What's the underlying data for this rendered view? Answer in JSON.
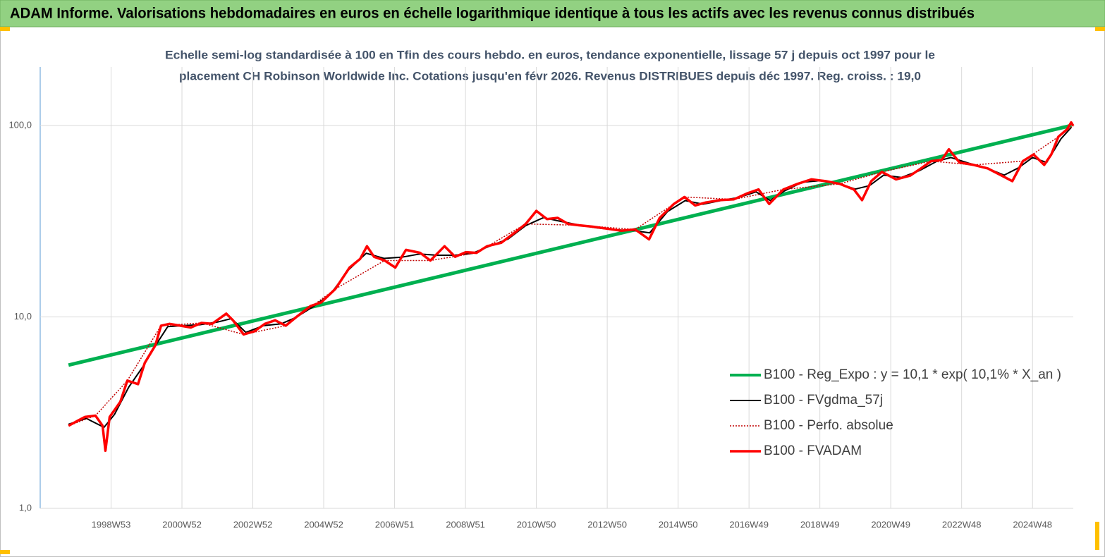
{
  "header": {
    "title": "ADAM Informe. Valorisations hebdomadaires en euros en échelle logarithmique identique à tous les actifs avec les revenus connus distribués"
  },
  "chart_data": {
    "type": "line",
    "subtitle": [
      "Echelle semi-log standardisée à 100 en Tfin des cours hebdo. en euros, tendance exponentielle, lissage 57 j depuis oct 1997 pour le",
      "placement CH Robinson Worldwide Inc. Cotations jusqu'en févr 2026. Revenus DISTRIBUES depuis déc 1997. Reg. croiss. : 19,0"
    ],
    "log_y": true,
    "grid": true,
    "legend_position": "right",
    "xlim": [
      1997,
      2026.15
    ],
    "ylim": [
      1,
      202
    ],
    "yticks": [
      {
        "value": 1,
        "label": "1,0"
      },
      {
        "value": 10,
        "label": "10,0"
      },
      {
        "value": 100,
        "label": "100,0"
      }
    ],
    "xticks": [
      {
        "value": 1999,
        "label": "1998W53"
      },
      {
        "value": 2001,
        "label": "2000W52"
      },
      {
        "value": 2003,
        "label": "2002W52"
      },
      {
        "value": 2005,
        "label": "2004W52"
      },
      {
        "value": 2007,
        "label": "2006W51"
      },
      {
        "value": 2009,
        "label": "2008W51"
      },
      {
        "value": 2011,
        "label": "2010W50"
      },
      {
        "value": 2013,
        "label": "2012W50"
      },
      {
        "value": 2015,
        "label": "2014W50"
      },
      {
        "value": 2017,
        "label": "2016W49"
      },
      {
        "value": 2019,
        "label": "2018W49"
      },
      {
        "value": 2021,
        "label": "2020W49"
      },
      {
        "value": 2023,
        "label": "2022W48"
      },
      {
        "value": 2025,
        "label": "2024W48"
      }
    ],
    "series": [
      {
        "name": "B100 - Reg_Expo : y = 10,1 * exp( 10,1% *  X_an )",
        "color": "#00b050",
        "width": 5,
        "dash": "none",
        "x": [
          1997.8,
          2026.1
        ],
        "values": [
          5.6,
          100
        ]
      },
      {
        "name": "B100 - FVgdma_57j",
        "color": "#000000",
        "width": 2,
        "dash": "none",
        "x": [
          1997.8,
          1998.3,
          1998.8,
          1999.1,
          1999.5,
          1999.9,
          2000.3,
          2000.6,
          2001.0,
          2001.5,
          2002.0,
          2002.4,
          2002.8,
          2003.3,
          2003.8,
          2004.2,
          2004.7,
          2005.2,
          2005.7,
          2006.2,
          2006.7,
          2007.2,
          2007.7,
          2008.2,
          2008.7,
          2009.2,
          2009.7,
          2010.2,
          2010.7,
          2011.2,
          2011.7,
          2012.2,
          2012.7,
          2013.2,
          2013.7,
          2014.2,
          2014.7,
          2015.2,
          2015.7,
          2016.2,
          2016.7,
          2017.2,
          2017.6,
          2018.0,
          2018.5,
          2019.0,
          2019.5,
          2020.0,
          2020.4,
          2020.8,
          2021.3,
          2021.8,
          2022.3,
          2022.7,
          2023.2,
          2023.7,
          2024.2,
          2024.6,
          2025.0,
          2025.4,
          2025.8,
          2026.1
        ],
        "values": [
          2.75,
          2.95,
          2.65,
          3.1,
          4.3,
          5.5,
          7.3,
          8.9,
          9.0,
          9.1,
          9.4,
          9.8,
          8.3,
          9.0,
          9.2,
          9.9,
          11.3,
          13.2,
          17.6,
          21.5,
          20.2,
          20.5,
          21.3,
          21.0,
          21.0,
          21.5,
          23.5,
          25.5,
          30.0,
          33.0,
          31.5,
          30.2,
          29.2,
          28.5,
          28.3,
          27.5,
          35.5,
          40.5,
          38.8,
          40.5,
          42.0,
          45.0,
          40.5,
          45.5,
          50.5,
          51.5,
          50.0,
          46.5,
          48.5,
          55.0,
          53.5,
          58.0,
          65.0,
          68.0,
          63.5,
          60.0,
          55.0,
          60.0,
          68.0,
          64.0,
          85.0,
          98.0
        ]
      },
      {
        "name": "B100 - Perfo. absolue",
        "color": "#c00000",
        "width": 1.5,
        "dash": "2 2",
        "x": [
          1997.8,
          1998.56,
          1999.46,
          2000.41,
          2001.55,
          2002.74,
          2003.93,
          2005.33,
          2006.72,
          2008.01,
          2009.31,
          2010.7,
          2012.2,
          2013.79,
          2015.18,
          2016.57,
          2017.97,
          2019.56,
          2020.75,
          2022.14,
          2023.34,
          2024.73,
          2025.73,
          2026.15
        ],
        "values": [
          2.7,
          3.05,
          4.65,
          9.0,
          9.3,
          8.1,
          9.0,
          14.0,
          19.7,
          19.7,
          21.6,
          30.6,
          30.1,
          28.6,
          42.3,
          41.1,
          46.3,
          49.5,
          57.2,
          65.1,
          62.2,
          65.1,
          87.3,
          99.5
        ]
      },
      {
        "name": "B100 - FVADAM",
        "color": "#ff0000",
        "width": 3.5,
        "dash": "none",
        "x": [
          1997.8,
          1998.06,
          1998.26,
          1998.56,
          1998.76,
          1998.84,
          1998.96,
          1999.26,
          1999.46,
          1999.76,
          1999.95,
          2000.25,
          2000.41,
          2000.65,
          2000.95,
          2001.25,
          2001.55,
          2001.85,
          2002.25,
          2002.44,
          2002.74,
          2003.04,
          2003.34,
          2003.63,
          2003.93,
          2004.23,
          2004.63,
          2004.93,
          2005.33,
          2005.73,
          2006.03,
          2006.22,
          2006.42,
          2006.72,
          2007.02,
          2007.32,
          2007.72,
          2008.01,
          2008.41,
          2008.71,
          2009.01,
          2009.31,
          2009.61,
          2010.01,
          2010.4,
          2010.7,
          2011.0,
          2011.3,
          2011.6,
          2011.9,
          2012.2,
          2012.59,
          2012.99,
          2013.39,
          2013.79,
          2014.18,
          2014.48,
          2014.88,
          2015.18,
          2015.48,
          2015.78,
          2016.17,
          2016.57,
          2016.97,
          2017.27,
          2017.57,
          2017.97,
          2018.37,
          2018.76,
          2019.16,
          2019.56,
          2019.96,
          2020.19,
          2020.45,
          2020.75,
          2021.15,
          2021.55,
          2021.85,
          2022.14,
          2022.44,
          2022.64,
          2022.94,
          2023.34,
          2023.74,
          2024.13,
          2024.43,
          2024.73,
          2025.03,
          2025.33,
          2025.53,
          2025.73,
          2025.97,
          2026.09,
          2026.15
        ],
        "values": [
          2.7,
          2.87,
          3.0,
          3.05,
          2.7,
          2.0,
          3.0,
          3.6,
          4.65,
          4.45,
          5.75,
          7.1,
          9.0,
          9.2,
          9.0,
          8.8,
          9.3,
          9.2,
          10.4,
          9.6,
          8.1,
          8.4,
          9.2,
          9.6,
          9.0,
          10.0,
          11.4,
          11.9,
          14.0,
          18.1,
          20.1,
          23.4,
          20.6,
          19.7,
          18.1,
          22.4,
          21.6,
          19.7,
          23.4,
          20.6,
          21.8,
          21.6,
          23.4,
          24.4,
          27.6,
          30.6,
          35.8,
          32.4,
          32.9,
          30.6,
          30.1,
          29.6,
          28.9,
          28.2,
          28.6,
          25.4,
          32.9,
          38.9,
          42.3,
          38.2,
          39.6,
          40.7,
          41.1,
          44.3,
          46.3,
          38.9,
          46.3,
          49.5,
          52.3,
          51.2,
          49.5,
          46.3,
          40.7,
          51.2,
          57.2,
          52.3,
          54.7,
          59.6,
          65.1,
          66.0,
          75.1,
          64.0,
          62.2,
          59.6,
          54.7,
          51.2,
          65.1,
          70.5,
          62.2,
          70.5,
          87.3,
          95.3,
          103.7,
          99.5
        ]
      }
    ]
  }
}
